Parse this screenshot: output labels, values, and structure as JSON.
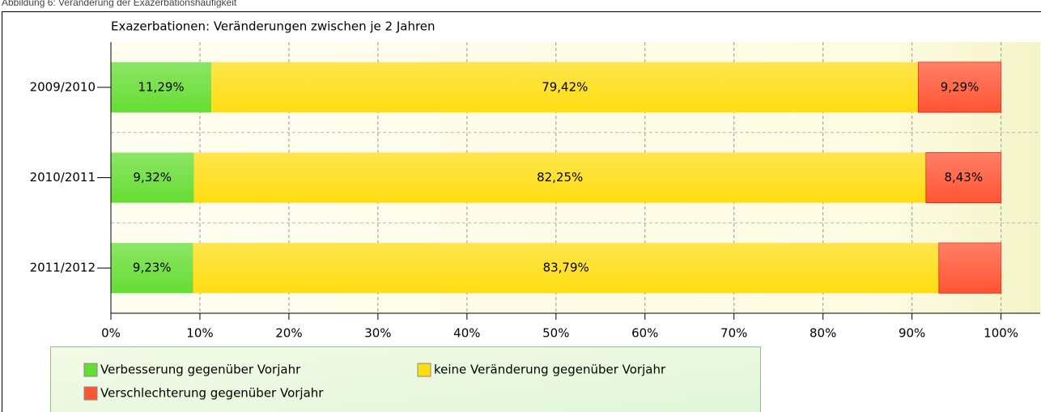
{
  "chart_data": {
    "type": "stacked-barh",
    "caption": "Abbildung 6: Veränderung der Exazerbationshäufigkeit",
    "title": "Exazerbationen: Veränderungen zwischen je 2 Jahren",
    "categories": [
      "2009/2010",
      "2010/2011",
      "2011/2012"
    ],
    "series": [
      {
        "name": "Verbesserung gegenüber Vorjahr",
        "color": "#66dd33",
        "values": [
          11.29,
          9.32,
          9.23
        ],
        "value_labels": [
          "11,29%",
          "9,32%",
          "9,23%"
        ]
      },
      {
        "name": "keine Veränderung gegenüber Vorjahr",
        "color": "#ffdd11",
        "values": [
          79.42,
          82.25,
          83.79
        ],
        "value_labels": [
          "79,42%",
          "82,25%",
          "83,79%"
        ]
      },
      {
        "name": "Verschlechterung gegenüber Vorjahr",
        "color": "#ff5533",
        "values": [
          9.29,
          8.43,
          6.98
        ],
        "value_labels": [
          "9,29%",
          "8,43%",
          null
        ]
      }
    ],
    "xlim": [
      0,
      104.4
    ],
    "xticks": [
      {
        "value": 0,
        "label": "0%"
      },
      {
        "value": 10,
        "label": "10%"
      },
      {
        "value": 20,
        "label": "20%"
      },
      {
        "value": 30,
        "label": "30%"
      },
      {
        "value": 40,
        "label": "40%"
      },
      {
        "value": 50,
        "label": "50%"
      },
      {
        "value": 60,
        "label": "60%"
      },
      {
        "value": 70,
        "label": "70%"
      },
      {
        "value": 80,
        "label": "80%"
      },
      {
        "value": 90,
        "label": "90%"
      },
      {
        "value": 100,
        "label": "100%"
      }
    ],
    "grid": true,
    "legend": "bottom-left"
  }
}
